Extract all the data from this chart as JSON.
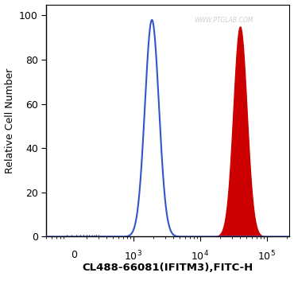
{
  "title": "",
  "xlabel": "CL488-66081(IFITM3),FITC-H",
  "ylabel": "Relative Cell Number",
  "ylim": [
    0,
    105
  ],
  "yticks": [
    0,
    20,
    40,
    60,
    80,
    100
  ],
  "background_color": "#ffffff",
  "watermark": "WWW.PTGLAB.COM",
  "blue_peak_log_mean": 3.28,
  "blue_peak_log_std": 0.105,
  "blue_peak_height": 98,
  "red_peak_log_mean": 4.6,
  "red_peak_log_std": 0.1,
  "red_peak_height": 95,
  "blue_color": "#3355cc",
  "red_color": "#cc0000",
  "x_start_log": 1.7,
  "x_end_log": 5.35,
  "xlim_min": 50,
  "xlim_max": 220000
}
